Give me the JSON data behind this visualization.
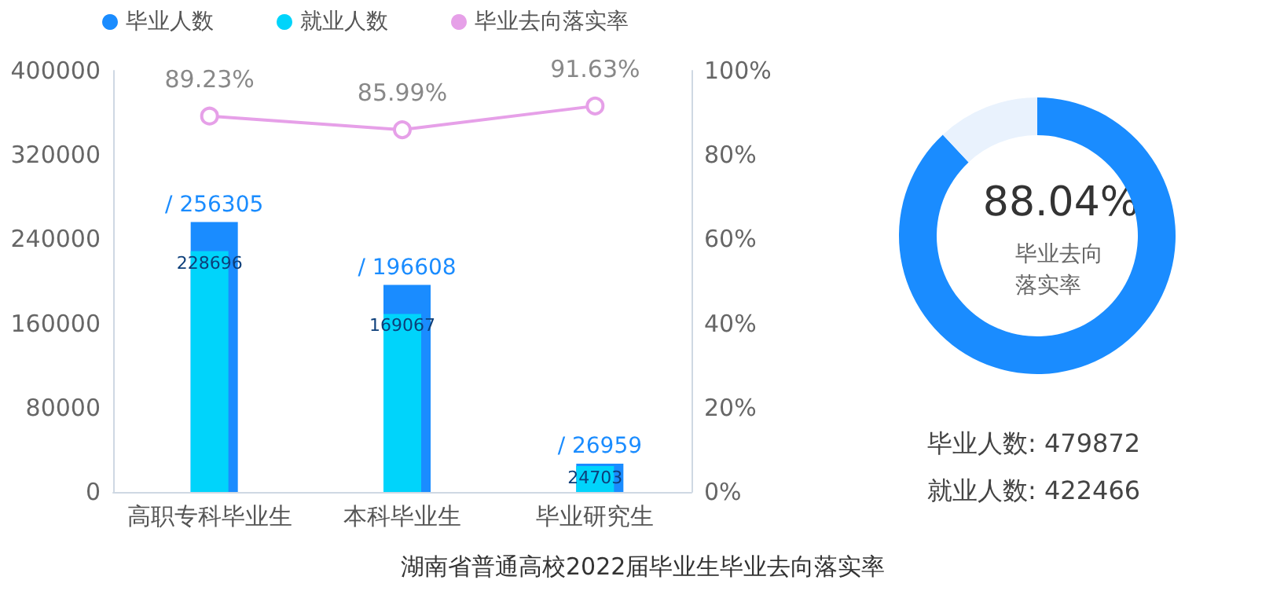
{
  "chart_data": [
    {
      "type": "bar",
      "title": "湖南省普通高校2022届毕业生毕业去向落实率",
      "categories": [
        "高职专科毕业生",
        "本科毕业生",
        "毕业研究生"
      ],
      "series": [
        {
          "name": "毕业人数",
          "color": "#1a8cff",
          "values": [
            256305,
            196608,
            26959
          ],
          "value_labels": [
            "/ 256305",
            "/ 196608",
            "/ 26959"
          ]
        },
        {
          "name": "就业人数",
          "color": "#00d4fb",
          "values": [
            228696,
            169067,
            24703
          ],
          "value_labels": [
            "228696",
            "169067",
            "24703"
          ]
        },
        {
          "name": "毕业去向落实率",
          "type": "line",
          "axis": "y2",
          "color": "#e6a0e8",
          "values": [
            89.23,
            85.99,
            91.63
          ],
          "value_labels": [
            "89.23%",
            "85.99%",
            "91.63%"
          ]
        }
      ],
      "ylim": [
        0,
        400000
      ],
      "yticks": [
        0,
        80000,
        160000,
        240000,
        320000,
        400000
      ],
      "y2lim": [
        0,
        100
      ],
      "y2ticks": [
        {
          "value": 0,
          "label": "0%"
        },
        {
          "value": 20,
          "label": "20%"
        },
        {
          "value": 40,
          "label": "40%"
        },
        {
          "value": 60,
          "label": "60%"
        },
        {
          "value": 80,
          "label": "80%"
        },
        {
          "value": 100,
          "label": "100%"
        }
      ],
      "legend": "top",
      "marker": "circle"
    },
    {
      "type": "donut",
      "title": "毕业去向落实率",
      "categories": [
        null,
        null
      ],
      "values": [
        88.04,
        11.96
      ],
      "colors": [
        "#1a8cff",
        "#e9f2fd"
      ],
      "value_labels": [
        "88.04%",
        null
      ],
      "annotations": [
        "毕业人数: 479872",
        "就业人数: 422466"
      ]
    }
  ]
}
